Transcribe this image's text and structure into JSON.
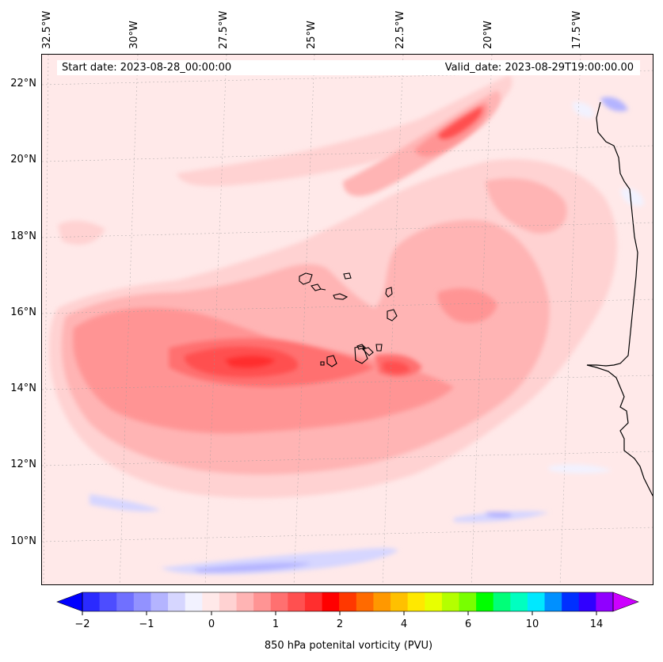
{
  "header": {
    "start_date": "Start date: 2023-08-28_00:00:00",
    "valid_date": "Valid_date: 2023-08-29T19:00:00.00"
  },
  "axes": {
    "lon_labels": [
      "32.5°W",
      "30°W",
      "27.5°W",
      "25°W",
      "22.5°W",
      "20°W",
      "17.5°W"
    ],
    "lat_labels": [
      "22°N",
      "20°N",
      "18°N",
      "16°N",
      "14°N",
      "12°N",
      "10°N"
    ]
  },
  "colorbar": {
    "label": "850 hPa potenital vorticity (PVU)",
    "tick_labels": [
      "−2",
      "−1",
      "0",
      "1",
      "2",
      "4",
      "6",
      "10",
      "14"
    ],
    "colors": [
      "#0000ff",
      "#2a2aff",
      "#4d4dff",
      "#7070ff",
      "#9292ff",
      "#b4b4ff",
      "#d6d6ff",
      "#f2f2ff",
      "#ffe9e9",
      "#ffd2d2",
      "#ffb4b4",
      "#ff9494",
      "#ff7070",
      "#ff5050",
      "#ff2e2e",
      "#ff0000",
      "#ff3800",
      "#ff6a00",
      "#ff9800",
      "#ffc000",
      "#ffe800",
      "#e8ff00",
      "#b4ff00",
      "#78ff00",
      "#00ff00",
      "#00ff78",
      "#00ffc0",
      "#00e8ff",
      "#0090ff",
      "#0030ff",
      "#3000ff",
      "#9000ff",
      "#cc00ff"
    ]
  },
  "map": {
    "field": "850 hPa potential vorticity",
    "background_color": "#ffe9e9",
    "coast_color": "#000000"
  }
}
